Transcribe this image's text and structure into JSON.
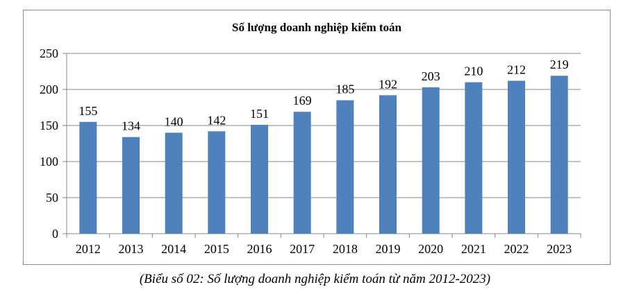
{
  "chart_data": {
    "type": "bar",
    "title": "Số lượng doanh nghiệp kiểm toán",
    "categories": [
      "2012",
      "2013",
      "2014",
      "2015",
      "2016",
      "2017",
      "2018",
      "2019",
      "2020",
      "2021",
      "2022",
      "2023"
    ],
    "values": [
      155,
      134,
      140,
      142,
      151,
      169,
      185,
      192,
      203,
      210,
      212,
      219
    ],
    "yticks": [
      0,
      50,
      100,
      150,
      200,
      250
    ],
    "ylim": [
      0,
      250
    ],
    "grid": true,
    "data_labels": true,
    "bar_color": "#4F81BD",
    "xlabel": "",
    "ylabel": ""
  },
  "caption": "(Biểu số 02: Số lượng doanh nghiệp kiểm toán từ năm 2012-2023)"
}
